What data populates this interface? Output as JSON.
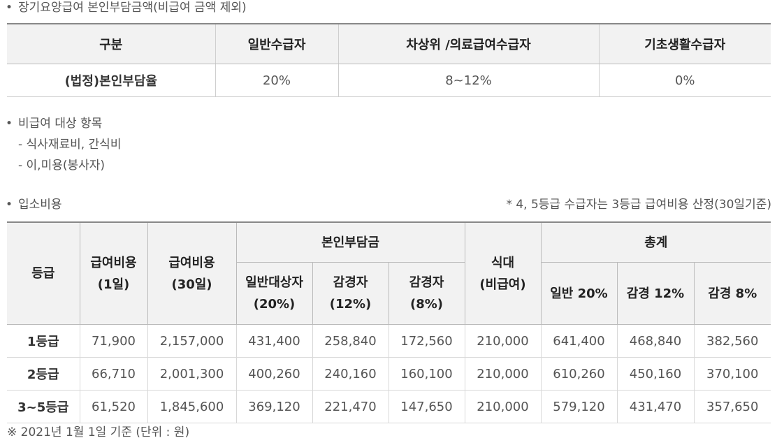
{
  "section1": {
    "heading": "장기요양급여 본인부담금액(비급여 금액 제외)",
    "headers": [
      "구분",
      "일반수급자",
      "차상위 /의료급여수급자",
      "기초생활수급자"
    ],
    "row": {
      "label": "(법정)본인부담율",
      "values": [
        "20%",
        "8~12%",
        "0%"
      ]
    }
  },
  "section2": {
    "heading": "비급여 대상 항목",
    "items": [
      "- 식사재료비, 간식비",
      "- 이,미용(봉사자)"
    ]
  },
  "section3": {
    "heading": "입소비용",
    "note": "* 4, 5등급 수급자는 3등급 급여비용 산정(30일기준)",
    "headers": {
      "grade": "등급",
      "cost1_line1": "급여비용",
      "cost1_line2": "(1일)",
      "cost30_line1": "급여비용",
      "cost30_line2": "(30일)",
      "copay": "본인부담금",
      "copay_general_line1": "일반대상자",
      "copay_general_line2": "(20%)",
      "copay_r12_line1": "감경자",
      "copay_r12_line2": "(12%)",
      "copay_r8_line1": "감경자",
      "copay_r8_line2": "(8%)",
      "meal_line1": "식대",
      "meal_line2": "(비급여)",
      "total": "총계",
      "total_general": "일반 20%",
      "total_r12": "감경 12%",
      "total_r8": "감경 8%"
    },
    "rows": [
      {
        "grade": "1등급",
        "values": [
          "71,900",
          "2,157,000",
          "431,400",
          "258,840",
          "172,560",
          "210,000",
          "641,400",
          "468,840",
          "382,560"
        ]
      },
      {
        "grade": "2등급",
        "values": [
          "66,710",
          "2,001,300",
          "400,260",
          "240,160",
          "160,100",
          "210,000",
          "610,260",
          "450,160",
          "370,100"
        ]
      },
      {
        "grade": "3~5등급",
        "values": [
          "61,520",
          "1,845,600",
          "369,120",
          "221,470",
          "147,650",
          "210,000",
          "579,120",
          "431,470",
          "357,650"
        ]
      }
    ],
    "footnote": "※ 2021년 1월 1일 기준 (단위 : 원)"
  }
}
